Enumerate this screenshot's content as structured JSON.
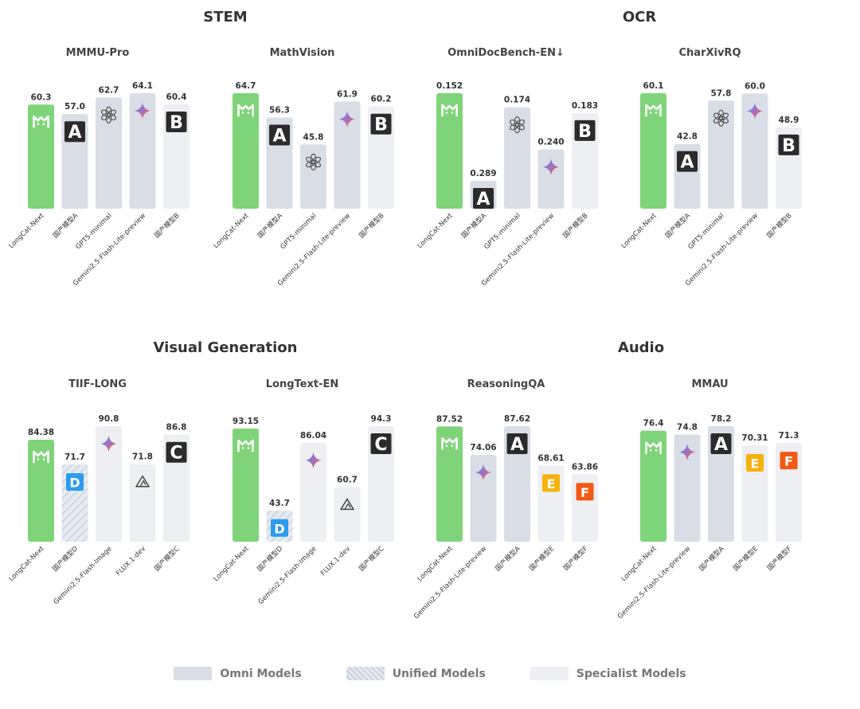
{
  "group_titles": {
    "stem": "STEM",
    "ocr": "OCR",
    "visual_generation": "Visual Generation",
    "audio": "Audio"
  },
  "legend": [
    {
      "label": "Omni Models",
      "color": "#d9dde6",
      "pattern": "solid"
    },
    {
      "label": "Unified Models",
      "color": "#dde3ec",
      "pattern": "hatched"
    },
    {
      "label": "Specialist Models",
      "color": "#eeeff2",
      "pattern": "solid"
    }
  ],
  "colors": {
    "longcat": "#7fd47a",
    "omni": "#d9dde6",
    "unified": "#dde3ec",
    "specialist": "#eeeff2",
    "badge_dark": "#2b2b2b",
    "badge_D": "#2c9bf0",
    "badge_E": "#f5b20a",
    "badge_F": "#f05a14"
  },
  "chart_data": [
    {
      "type": "bar",
      "group": "STEM",
      "title": "MMMU-Pro",
      "categories": [
        "LongCat-Next",
        "国产模型A",
        "GPT5-minimal",
        "Gemini2.5-Flash-Lite-preview",
        "国产模型B"
      ],
      "values": [
        60.3,
        57.0,
        62.7,
        64.1,
        60.4
      ],
      "value_labels": [
        "60.3",
        "57.0",
        "62.7",
        "64.1",
        "60.4"
      ],
      "model_class": [
        "longcat",
        "omni",
        "omni",
        "omni",
        "specialist"
      ],
      "icons": [
        "longcat-icon",
        "badge-A",
        "openai-icon",
        "gemini-icon",
        "badge-B"
      ]
    },
    {
      "type": "bar",
      "group": "STEM",
      "title": "MathVision",
      "categories": [
        "LongCat-Next",
        "国产模型A",
        "GPT5-minimal",
        "Gemini2.5-Flash-Lite-preview",
        "国产模型B"
      ],
      "values": [
        64.7,
        56.3,
        45.8,
        61.9,
        60.2
      ],
      "value_labels": [
        "64.7",
        "56.3",
        "45.8",
        "61.9",
        "60.2"
      ],
      "model_class": [
        "longcat",
        "omni",
        "omni",
        "omni",
        "specialist"
      ],
      "icons": [
        "longcat-icon",
        "badge-A",
        "openai-icon",
        "gemini-icon",
        "badge-B"
      ]
    },
    {
      "type": "bar",
      "group": "OCR",
      "title": "OmniDocBench-EN↓",
      "categories": [
        "LongCat-Next",
        "国产模型A",
        "GPT5-minimal",
        "Gemini2.5-Flash-Lite-preview",
        "国产模型B"
      ],
      "values": [
        0.152,
        0.289,
        0.174,
        0.24,
        0.183
      ],
      "value_labels": [
        "0.152",
        "0.289",
        "0.174",
        "0.240",
        "0.183"
      ],
      "lower_is_better": true,
      "model_class": [
        "longcat",
        "omni",
        "omni",
        "omni",
        "specialist"
      ],
      "icons": [
        "longcat-icon",
        "badge-A",
        "openai-icon",
        "gemini-icon",
        "badge-B"
      ]
    },
    {
      "type": "bar",
      "group": "OCR",
      "title": "CharXivRQ",
      "categories": [
        "LongCat-Next",
        "国产模型A",
        "GPT5-minimal",
        "Gemini2.5-Flash-Lite-preview",
        "国产模型B"
      ],
      "values": [
        60.1,
        42.8,
        57.8,
        60.0,
        48.9
      ],
      "value_labels": [
        "60.1",
        "42.8",
        "57.8",
        "60.0",
        "48.9"
      ],
      "model_class": [
        "longcat",
        "omni",
        "omni",
        "omni",
        "specialist"
      ],
      "icons": [
        "longcat-icon",
        "badge-A",
        "openai-icon",
        "gemini-icon",
        "badge-B"
      ]
    },
    {
      "type": "bar",
      "group": "Visual Generation",
      "title": "TIIF-LONG",
      "categories": [
        "LongCat-Next",
        "国产模型D",
        "Gemini2.5-Flash-Image",
        "FLUX.1-dev",
        "国产模型C"
      ],
      "values": [
        84.38,
        71.7,
        90.8,
        71.8,
        86.8
      ],
      "value_labels": [
        "84.38",
        "71.7",
        "90.8",
        "71.8",
        "86.8"
      ],
      "model_class": [
        "longcat",
        "unified",
        "specialist",
        "specialist",
        "specialist"
      ],
      "icons": [
        "longcat-icon",
        "badge-D",
        "gemini-icon",
        "flux-icon",
        "badge-C"
      ]
    },
    {
      "type": "bar",
      "group": "Visual Generation",
      "title": "LongText-EN",
      "categories": [
        "LongCat-Next",
        "国产模型D",
        "Gemini2.5-Flash-Image",
        "FLUX.1-dev",
        "国产模型C"
      ],
      "values": [
        93.15,
        43.7,
        86.04,
        60.7,
        94.3
      ],
      "value_labels": [
        "93.15",
        "43.7",
        "86.04",
        "60.7",
        "94.3"
      ],
      "model_class": [
        "longcat",
        "unified",
        "specialist",
        "specialist",
        "specialist"
      ],
      "icons": [
        "longcat-icon",
        "badge-D",
        "gemini-icon",
        "flux-icon",
        "badge-C"
      ]
    },
    {
      "type": "bar",
      "group": "Audio",
      "title": "ReasoningQA",
      "categories": [
        "LongCat-Next",
        "Gemini2.5-Flash-Lite-preview",
        "国产模型A",
        "国产模型E",
        "国产模型F"
      ],
      "values": [
        87.52,
        74.06,
        87.62,
        68.61,
        63.86
      ],
      "value_labels": [
        "87.52",
        "74.06",
        "87.62",
        "68.61",
        "63.86"
      ],
      "model_class": [
        "longcat",
        "omni",
        "omni",
        "specialist",
        "specialist"
      ],
      "icons": [
        "longcat-icon",
        "gemini-icon",
        "badge-A",
        "badge-E",
        "badge-F"
      ]
    },
    {
      "type": "bar",
      "group": "Audio",
      "title": "MMAU",
      "categories": [
        "LongCat-Next",
        "Gemini2.5-Flash-Lite-preview",
        "国产模型A",
        "国产模型E",
        "国产模型F"
      ],
      "values": [
        76.4,
        74.8,
        78.2,
        70.31,
        71.3
      ],
      "value_labels": [
        "76.4",
        "74.8",
        "78.2",
        "70.31",
        "71.3"
      ],
      "model_class": [
        "longcat",
        "omni",
        "omni",
        "specialist",
        "specialist"
      ],
      "icons": [
        "longcat-icon",
        "gemini-icon",
        "badge-A",
        "badge-E",
        "badge-F"
      ]
    }
  ]
}
